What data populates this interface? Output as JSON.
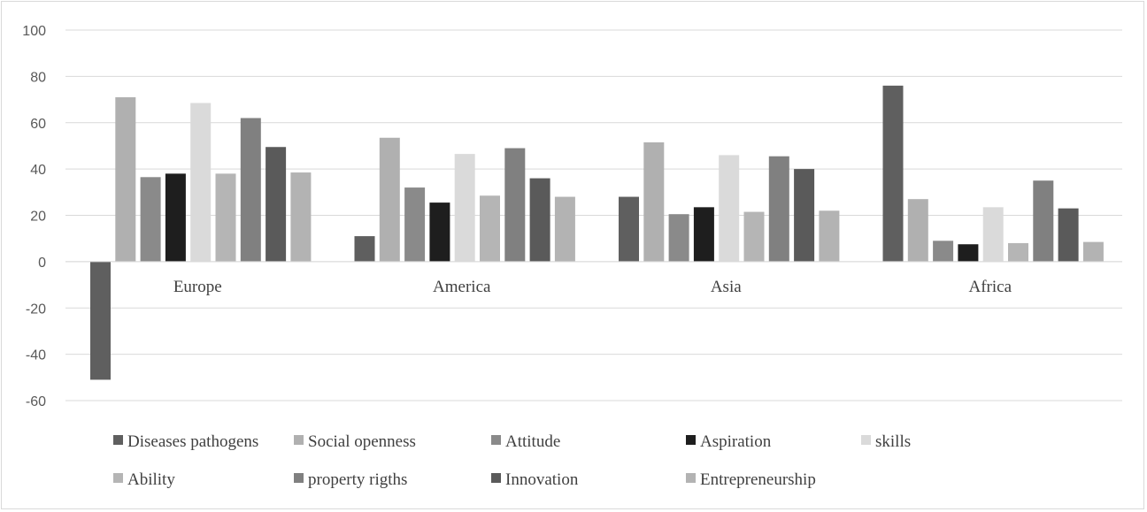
{
  "chart_data": {
    "type": "bar",
    "title": "",
    "xlabel": "",
    "ylabel": "",
    "ylim": [
      -60,
      100
    ],
    "yticks": [
      100,
      80,
      60,
      40,
      20,
      0,
      -20,
      -40,
      -60
    ],
    "grid": true,
    "legend_position": "bottom",
    "categories": [
      "Europe",
      "America",
      "Asia",
      "Africa"
    ],
    "series": [
      {
        "name": "Diseases pathogens",
        "color": "#5f5f5f",
        "values": [
          -51,
          11,
          28,
          76
        ]
      },
      {
        "name": "Social openness",
        "color": "#b0b0b0",
        "values": [
          71,
          53.5,
          51.5,
          27
        ]
      },
      {
        "name": "Attitude",
        "color": "#8a8a8a",
        "values": [
          36.5,
          32,
          20.5,
          9
        ]
      },
      {
        "name": "Aspiration",
        "color": "#1e1e1e",
        "values": [
          38,
          25.5,
          23.5,
          7.5
        ]
      },
      {
        "name": "skills",
        "color": "#dadada",
        "values": [
          68.5,
          46.5,
          46,
          23.5
        ]
      },
      {
        "name": "Ability",
        "color": "#b5b5b5",
        "values": [
          38,
          28.5,
          21.5,
          8
        ]
      },
      {
        "name": "property rigths",
        "color": "#808080",
        "values": [
          62,
          49,
          45.5,
          35
        ]
      },
      {
        "name": "Innovation",
        "color": "#5a5a5a",
        "values": [
          49.5,
          36,
          40,
          23
        ]
      },
      {
        "name": "Entrepreneurship",
        "color": "#b3b3b3",
        "values": [
          38.5,
          28,
          22,
          8.5
        ]
      }
    ]
  }
}
